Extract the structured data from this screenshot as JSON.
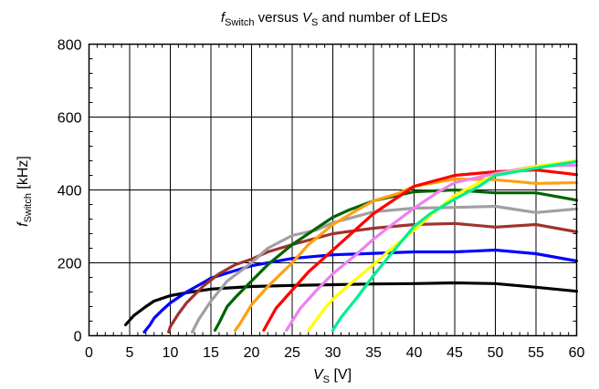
{
  "chart_data": {
    "type": "line",
    "title": {
      "f_italic": "f",
      "f_sub": "Switch",
      "mid": " versus ",
      "v_italic": "V",
      "v_sub": "S",
      "rest": " and number of LEDs"
    },
    "xlabel": {
      "var_italic": "V",
      "var_sub": "S",
      "unit": " [V]"
    },
    "ylabel": {
      "var_italic": "f",
      "var_sub": "Switch",
      "unit": " [kHz]"
    },
    "xlim": [
      0,
      60
    ],
    "ylim": [
      0,
      800
    ],
    "xticks": [
      0,
      5,
      10,
      15,
      20,
      25,
      30,
      35,
      40,
      45,
      50,
      55,
      60
    ],
    "yticks": [
      0,
      200,
      400,
      600,
      800
    ],
    "grid": true,
    "series": [
      {
        "color": "#000000",
        "points": [
          [
            4.5,
            30
          ],
          [
            5.5,
            55
          ],
          [
            7,
            80
          ],
          [
            8,
            95
          ],
          [
            10,
            110
          ],
          [
            12,
            118
          ],
          [
            15,
            128
          ],
          [
            20,
            135
          ],
          [
            25,
            138
          ],
          [
            30,
            140
          ],
          [
            35,
            142
          ],
          [
            40,
            143
          ],
          [
            45,
            145
          ],
          [
            50,
            143
          ],
          [
            55,
            133
          ],
          [
            60,
            122
          ]
        ]
      },
      {
        "color": "#0000ff",
        "points": [
          [
            6.8,
            10
          ],
          [
            7.5,
            30
          ],
          [
            8,
            48
          ],
          [
            9,
            70
          ],
          [
            10,
            90
          ],
          [
            12,
            120
          ],
          [
            14,
            145
          ],
          [
            15,
            158
          ],
          [
            17,
            172
          ],
          [
            20,
            192
          ],
          [
            25,
            212
          ],
          [
            30,
            222
          ],
          [
            35,
            226
          ],
          [
            40,
            230
          ],
          [
            45,
            230
          ],
          [
            50,
            235
          ],
          [
            55,
            225
          ],
          [
            60,
            205
          ]
        ]
      },
      {
        "color": "#a0322d",
        "points": [
          [
            9.8,
            10
          ],
          [
            10,
            25
          ],
          [
            11,
            60
          ],
          [
            12,
            90
          ],
          [
            14,
            135
          ],
          [
            16,
            170
          ],
          [
            18,
            195
          ],
          [
            20,
            210
          ],
          [
            22,
            230
          ],
          [
            25,
            250
          ],
          [
            30,
            280
          ],
          [
            35,
            295
          ],
          [
            40,
            305
          ],
          [
            45,
            308
          ],
          [
            50,
            298
          ],
          [
            55,
            305
          ],
          [
            60,
            285
          ]
        ]
      },
      {
        "color": "#a0a0a0",
        "points": [
          [
            12.7,
            10
          ],
          [
            13.5,
            45
          ],
          [
            15,
            95
          ],
          [
            17,
            150
          ],
          [
            20,
            200
          ],
          [
            22,
            240
          ],
          [
            25,
            275
          ],
          [
            28,
            290
          ],
          [
            30,
            310
          ],
          [
            35,
            340
          ],
          [
            40,
            350
          ],
          [
            45,
            352
          ],
          [
            50,
            355
          ],
          [
            55,
            338
          ],
          [
            60,
            348
          ]
        ]
      },
      {
        "color": "#006400",
        "points": [
          [
            15.5,
            15
          ],
          [
            16,
            35
          ],
          [
            17,
            80
          ],
          [
            18,
            105
          ],
          [
            20,
            150
          ],
          [
            22,
            195
          ],
          [
            25,
            250
          ],
          [
            28,
            295
          ],
          [
            30,
            325
          ],
          [
            32,
            345
          ],
          [
            35,
            370
          ],
          [
            40,
            395
          ],
          [
            45,
            400
          ],
          [
            50,
            392
          ],
          [
            55,
            392
          ],
          [
            60,
            372
          ]
        ]
      },
      {
        "color": "#ffa010",
        "points": [
          [
            18,
            15
          ],
          [
            18.5,
            30
          ],
          [
            20,
            85
          ],
          [
            22,
            135
          ],
          [
            25,
            200
          ],
          [
            27,
            250
          ],
          [
            30,
            305
          ],
          [
            33,
            345
          ],
          [
            35,
            370
          ],
          [
            38,
            390
          ],
          [
            40,
            410
          ],
          [
            45,
            430
          ],
          [
            50,
            428
          ],
          [
            55,
            418
          ],
          [
            60,
            420
          ]
        ]
      },
      {
        "color": "#ff0000",
        "points": [
          [
            21.5,
            15
          ],
          [
            22,
            35
          ],
          [
            23,
            75
          ],
          [
            25,
            125
          ],
          [
            27,
            175
          ],
          [
            30,
            235
          ],
          [
            33,
            295
          ],
          [
            35,
            335
          ],
          [
            37,
            365
          ],
          [
            40,
            410
          ],
          [
            45,
            440
          ],
          [
            50,
            450
          ],
          [
            55,
            455
          ],
          [
            60,
            442
          ]
        ]
      },
      {
        "color": "#ee82ee",
        "points": [
          [
            24.3,
            15
          ],
          [
            25,
            40
          ],
          [
            26,
            75
          ],
          [
            28,
            125
          ],
          [
            30,
            170
          ],
          [
            33,
            225
          ],
          [
            35,
            265
          ],
          [
            37,
            300
          ],
          [
            40,
            350
          ],
          [
            43,
            395
          ],
          [
            45,
            420
          ],
          [
            50,
            445
          ],
          [
            55,
            465
          ],
          [
            60,
            468
          ]
        ]
      },
      {
        "color": "#ffff00",
        "points": [
          [
            27,
            15
          ],
          [
            27.5,
            30
          ],
          [
            29,
            75
          ],
          [
            30,
            100
          ],
          [
            32,
            140
          ],
          [
            35,
            195
          ],
          [
            37,
            235
          ],
          [
            40,
            290
          ],
          [
            42,
            330
          ],
          [
            45,
            385
          ],
          [
            48,
            420
          ],
          [
            50,
            440
          ],
          [
            55,
            465
          ],
          [
            60,
            480
          ]
        ]
      },
      {
        "color": "#00ee90",
        "points": [
          [
            30,
            15
          ],
          [
            31,
            50
          ],
          [
            33,
            105
          ],
          [
            35,
            165
          ],
          [
            37,
            220
          ],
          [
            40,
            300
          ],
          [
            42,
            335
          ],
          [
            45,
            375
          ],
          [
            48,
            410
          ],
          [
            50,
            440
          ],
          [
            55,
            460
          ],
          [
            60,
            478
          ]
        ]
      }
    ]
  }
}
